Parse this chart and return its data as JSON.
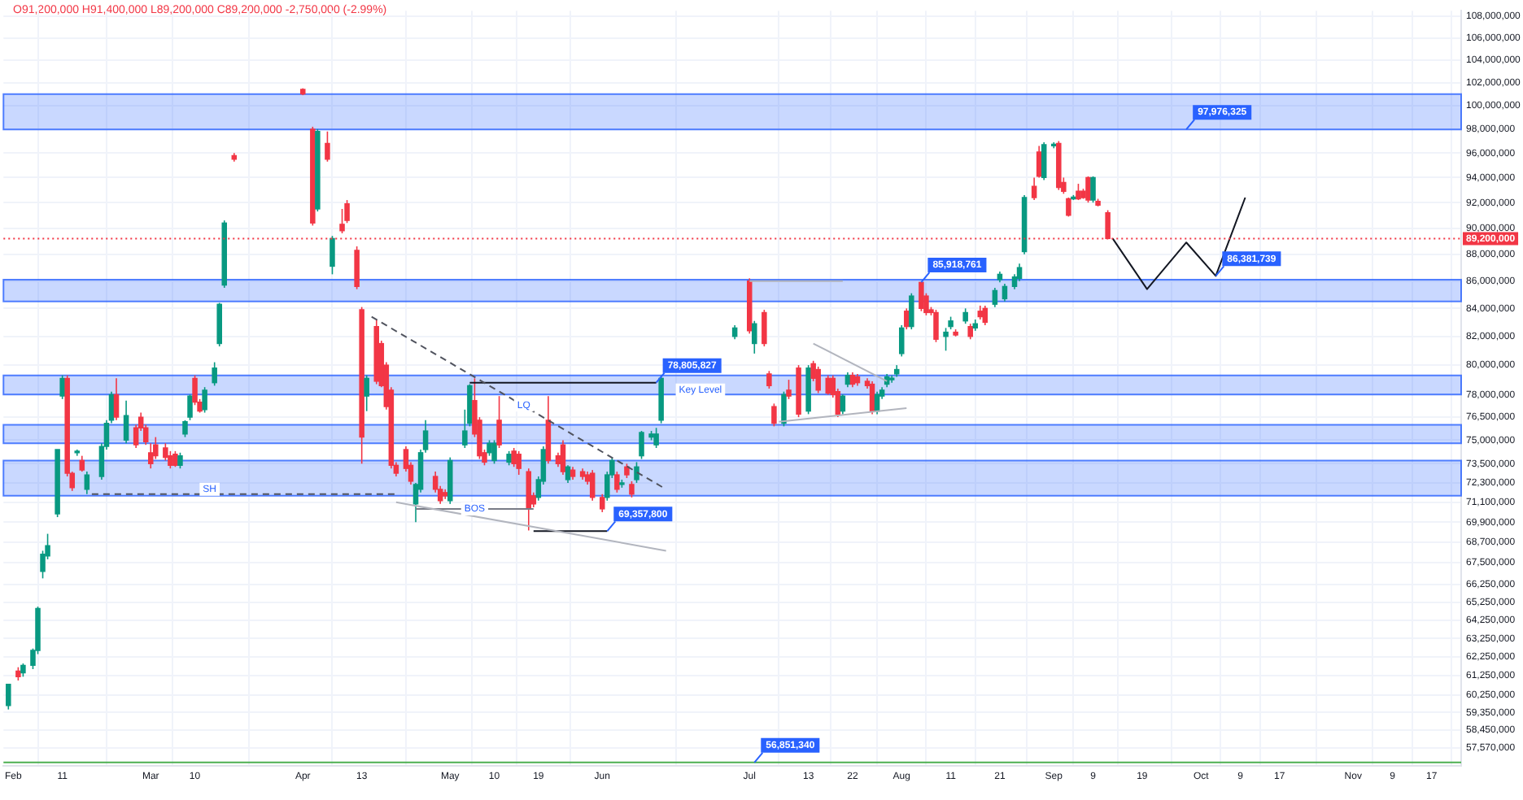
{
  "chart_data": {
    "type": "candlestick",
    "subtitle": "O91,200,000 H91,400,000 L89,200,000 C89,200,000 -2,750,000 (-2.99%)",
    "x": [
      "--01-31",
      "--02-02",
      "--02-03",
      "--02-05",
      "--02-06",
      "--02-07",
      "--02-08",
      "--02-10",
      "--02-11",
      "--02-12",
      "--02-13",
      "--02-14",
      "--02-15",
      "--02-16",
      "--02-19",
      "--02-20",
      "--02-21",
      "--02-22",
      "--02-24",
      "--02-26",
      "--02-27",
      "--02-28",
      "--03-01",
      "--03-02",
      "--03-04",
      "--03-05",
      "--03-06",
      "--03-07",
      "--03-08",
      "--03-09",
      "--03-10",
      "--03-11",
      "--03-12",
      "--03-14",
      "--03-15",
      "--03-16",
      "--03-18",
      "--04-01",
      "--04-03",
      "--04-04",
      "--04-06",
      "--04-07",
      "--04-09",
      "--04-10",
      "--04-12",
      "--04-13",
      "--04-14",
      "--04-16",
      "--04-17",
      "--04-18",
      "--04-19",
      "--04-20",
      "--04-22",
      "--04-23",
      "--04-24",
      "--04-25",
      "--04-26",
      "--04-28",
      "--04-29",
      "--04-30",
      "--05-01",
      "--05-04",
      "--05-05",
      "--05-06",
      "--05-07",
      "--05-08",
      "--05-09",
      "--05-10",
      "--05-11",
      "--05-13",
      "--05-14",
      "--05-15",
      "--05-17",
      "--05-18",
      "--05-19",
      "--05-20",
      "--05-21",
      "--05-23",
      "--05-24",
      "--05-25",
      "--05-26",
      "--05-28",
      "--05-29",
      "--05-30",
      "--06-01",
      "--06-02",
      "--06-03",
      "--06-04",
      "--06-05",
      "--06-06",
      "--06-07",
      "--06-08",
      "--06-09",
      "--06-11",
      "--06-12",
      "--06-13",
      "--06-28",
      "--07-01",
      "--07-02",
      "--07-04",
      "--07-05",
      "--07-06",
      "--07-08",
      "--07-09",
      "--07-11",
      "--07-13",
      "--07-14",
      "--07-15",
      "--07-17",
      "--07-18",
      "--07-19",
      "--07-20",
      "--07-21",
      "--07-22",
      "--07-23",
      "--07-25",
      "--07-26",
      "--07-27",
      "--07-28",
      "--07-29",
      "--07-30",
      "--07-31",
      "--08-01",
      "--08-02",
      "--08-03",
      "--08-05",
      "--08-06",
      "--08-07",
      "--08-08",
      "--08-10",
      "--08-11",
      "--08-12",
      "--08-14",
      "--08-15",
      "--08-16",
      "--08-17",
      "--08-18",
      "--08-20",
      "--08-21",
      "--08-22",
      "--08-24",
      "--08-25",
      "--08-26",
      "--08-28",
      "--08-29",
      "--08-30",
      "--09-01",
      "--09-02",
      "--09-03",
      "--09-04",
      "--09-05",
      "--09-06",
      "--09-07",
      "--09-08",
      "--09-09",
      "--09-10",
      "--09-12"
    ],
    "ohlc": [
      [
        59700000,
        60800000,
        59500000,
        60800000
      ],
      [
        61500000,
        61700000,
        61000000,
        61200000
      ],
      [
        61400000,
        61900000,
        61200000,
        61800000
      ],
      [
        61800000,
        62700000,
        61600000,
        62600000
      ],
      [
        62600000,
        65000000,
        62400000,
        64900000
      ],
      [
        67000000,
        68200000,
        66600000,
        68000000
      ],
      [
        67900000,
        69200000,
        67700000,
        68500000
      ],
      [
        70400000,
        74400000,
        70200000,
        74400000
      ],
      [
        77900000,
        79300000,
        77700000,
        79100000
      ],
      [
        79100000,
        79300000,
        72700000,
        72900000
      ],
      [
        72900000,
        73000000,
        71800000,
        72000000
      ],
      [
        74200000,
        74400000,
        74000000,
        74300000
      ],
      [
        73700000,
        74000000,
        73000000,
        73100000
      ],
      [
        71900000,
        73000000,
        71600000,
        72800000
      ],
      [
        72700000,
        74800000,
        72500000,
        74600000
      ],
      [
        74600000,
        76300000,
        74400000,
        76100000
      ],
      [
        76300000,
        78200000,
        76100000,
        78000000
      ],
      [
        78000000,
        79100000,
        76300000,
        76500000
      ],
      [
        75000000,
        77600000,
        74800000,
        76600000
      ],
      [
        75800000,
        76000000,
        74500000,
        74700000
      ],
      [
        76500000,
        76800000,
        75600000,
        75800000
      ],
      [
        75800000,
        76000000,
        74700000,
        74900000
      ],
      [
        74200000,
        74800000,
        73200000,
        73500000
      ],
      [
        74700000,
        75200000,
        73800000,
        74000000
      ],
      [
        74500000,
        74800000,
        73700000,
        73900000
      ],
      [
        74000000,
        74300000,
        73200000,
        73400000
      ],
      [
        74100000,
        74300000,
        73300000,
        73400000
      ],
      [
        73400000,
        74200000,
        73200000,
        74000000
      ],
      [
        75400000,
        76300000,
        75200000,
        76200000
      ],
      [
        76500000,
        78000000,
        76300000,
        77900000
      ],
      [
        79100000,
        79300000,
        77300000,
        77500000
      ],
      [
        77500000,
        77700000,
        76800000,
        76900000
      ],
      [
        77000000,
        78500000,
        76800000,
        78300000
      ],
      [
        78800000,
        80200000,
        78600000,
        79800000
      ],
      [
        81500000,
        84400000,
        81300000,
        84300000
      ],
      [
        85700000,
        90600000,
        85500000,
        90400000
      ],
      [
        95800000,
        96000000,
        95300000,
        95500000
      ],
      [
        101400000,
        101500000,
        100900000,
        101000000
      ],
      [
        98000000,
        98200000,
        90200000,
        90400000
      ],
      [
        91500000,
        98000000,
        91300000,
        97800000
      ],
      [
        96800000,
        97800000,
        95300000,
        95500000
      ],
      [
        87100000,
        89400000,
        86500000,
        89200000
      ],
      [
        90300000,
        91500000,
        89600000,
        89800000
      ],
      [
        91900000,
        92200000,
        90400000,
        90600000
      ],
      [
        88300000,
        88600000,
        85400000,
        85600000
      ],
      [
        83900000,
        84100000,
        73500000,
        75200000
      ],
      [
        77900000,
        79300000,
        76900000,
        79100000
      ],
      [
        82700000,
        83200000,
        78700000,
        78900000
      ],
      [
        81500000,
        81700000,
        78500000,
        78600000
      ],
      [
        80000000,
        80200000,
        77000000,
        77200000
      ],
      [
        78300000,
        78500000,
        73200000,
        73400000
      ],
      [
        73400000,
        73600000,
        72700000,
        72900000
      ],
      [
        74400000,
        74600000,
        73000000,
        73200000
      ],
      [
        73400000,
        73600000,
        72200000,
        72400000
      ],
      [
        71000000,
        72300000,
        69900000,
        72200000
      ],
      [
        71900000,
        74400000,
        71700000,
        74200000
      ],
      [
        74400000,
        76300000,
        74200000,
        75600000
      ],
      [
        72700000,
        73000000,
        71700000,
        71900000
      ],
      [
        71900000,
        72100000,
        71000000,
        71200000
      ],
      [
        71700000,
        71900000,
        71300000,
        71500000
      ],
      [
        71200000,
        73900000,
        71000000,
        73700000
      ],
      [
        74700000,
        77000000,
        74500000,
        75600000
      ],
      [
        76100000,
        78700000,
        75900000,
        78600000
      ],
      [
        77600000,
        79100000,
        75200000,
        75400000
      ],
      [
        76300000,
        76500000,
        73800000,
        74000000
      ],
      [
        74200000,
        74400000,
        73400000,
        73600000
      ],
      [
        74200000,
        75000000,
        74000000,
        74800000
      ],
      [
        73700000,
        75000000,
        73500000,
        74800000
      ],
      [
        76300000,
        77900000,
        74500000,
        74700000
      ],
      [
        73600000,
        74300000,
        73400000,
        74100000
      ],
      [
        74300000,
        74500000,
        73300000,
        73500000
      ],
      [
        74100000,
        74300000,
        72800000,
        73200000
      ],
      [
        73000000,
        73200000,
        69400000,
        70700000
      ],
      [
        71500000,
        71700000,
        70800000,
        71000000
      ],
      [
        71400000,
        72700000,
        71200000,
        72500000
      ],
      [
        72400000,
        74600000,
        72200000,
        74400000
      ],
      [
        76300000,
        77900000,
        73500000,
        73700000
      ],
      [
        74000000,
        74200000,
        73300000,
        73500000
      ],
      [
        74700000,
        75000000,
        72800000,
        73000000
      ],
      [
        72500000,
        73400000,
        72300000,
        73300000
      ],
      [
        73100000,
        73300000,
        72500000,
        72700000
      ],
      [
        73000000,
        73200000,
        72500000,
        72700000
      ],
      [
        72800000,
        73000000,
        72200000,
        72400000
      ],
      [
        72900000,
        73100000,
        71200000,
        71400000
      ],
      [
        71400000,
        71600000,
        70500000,
        70700000
      ],
      [
        71400000,
        73000000,
        71200000,
        72800000
      ],
      [
        72800000,
        73900000,
        72600000,
        73700000
      ],
      [
        72800000,
        73000000,
        71700000,
        71900000
      ],
      [
        72200000,
        72500000,
        72000000,
        72300000
      ],
      [
        73300000,
        73500000,
        72600000,
        72800000
      ],
      [
        72200000,
        72400000,
        71400000,
        71600000
      ],
      [
        72500000,
        73600000,
        72300000,
        73300000
      ],
      [
        74000000,
        75600000,
        73800000,
        75500000
      ],
      [
        75200000,
        75600000,
        75000000,
        75400000
      ],
      [
        74700000,
        75800000,
        74500000,
        75400000
      ],
      [
        76300000,
        79300000,
        76100000,
        79100000
      ],
      [
        82000000,
        82800000,
        81800000,
        82600000
      ],
      [
        86000000,
        86200000,
        82200000,
        82400000
      ],
      [
        81500000,
        83100000,
        80800000,
        82900000
      ],
      [
        83700000,
        83900000,
        81300000,
        81500000
      ],
      [
        79400000,
        79600000,
        78400000,
        78600000
      ],
      [
        77200000,
        77400000,
        75900000,
        76100000
      ],
      [
        76100000,
        78200000,
        75900000,
        78000000
      ],
      [
        78300000,
        79000000,
        77700000,
        77900000
      ],
      [
        79800000,
        80000000,
        76500000,
        76700000
      ],
      [
        76900000,
        80000000,
        76700000,
        79800000
      ],
      [
        80100000,
        80300000,
        78900000,
        79100000
      ],
      [
        79700000,
        79900000,
        78100000,
        78300000
      ],
      [
        79100000,
        79300000,
        78000000,
        78100000
      ],
      [
        79100000,
        79300000,
        77800000,
        78000000
      ],
      [
        78200000,
        78400000,
        76500000,
        76700000
      ],
      [
        76900000,
        78000000,
        76700000,
        77900000
      ],
      [
        78700000,
        79500000,
        78500000,
        79300000
      ],
      [
        79300000,
        79500000,
        78500000,
        78700000
      ],
      [
        79200000,
        79400000,
        78600000,
        78800000
      ],
      [
        78900000,
        79100000,
        78400000,
        78600000
      ],
      [
        78700000,
        78900000,
        76700000,
        76900000
      ],
      [
        76900000,
        78200000,
        76700000,
        78000000
      ],
      [
        77900000,
        78500000,
        77700000,
        78300000
      ],
      [
        78700000,
        79400000,
        78500000,
        79200000
      ],
      [
        79000000,
        79300000,
        78800000,
        79100000
      ],
      [
        79400000,
        80000000,
        79200000,
        79700000
      ],
      [
        80800000,
        82800000,
        80600000,
        82600000
      ],
      [
        83800000,
        84000000,
        82500000,
        82700000
      ],
      [
        82700000,
        85100000,
        82500000,
        84900000
      ],
      [
        85900000,
        85918761,
        83800000,
        84000000
      ],
      [
        84900000,
        85100000,
        83500000,
        83700000
      ],
      [
        83900000,
        84100000,
        83500000,
        83700000
      ],
      [
        83700000,
        83900000,
        81600000,
        81800000
      ],
      [
        82000000,
        82600000,
        81000000,
        82300000
      ],
      [
        82700000,
        83400000,
        82500000,
        83100000
      ],
      [
        82300000,
        82500000,
        82000000,
        82100000
      ],
      [
        83100000,
        84000000,
        82900000,
        83700000
      ],
      [
        82700000,
        82900000,
        81800000,
        82000000
      ],
      [
        82600000,
        83200000,
        82400000,
        82900000
      ],
      [
        83800000,
        84200000,
        83200000,
        83400000
      ],
      [
        84000000,
        84200000,
        82800000,
        83000000
      ],
      [
        84300000,
        85500000,
        84100000,
        85300000
      ],
      [
        86100000,
        86700000,
        85900000,
        86500000
      ],
      [
        84700000,
        85800000,
        84500000,
        85600000
      ],
      [
        85600000,
        86500000,
        85400000,
        86300000
      ],
      [
        86200000,
        87300000,
        86000000,
        87000000
      ],
      [
        88200000,
        92600000,
        88000000,
        92400000
      ],
      [
        93300000,
        94000000,
        92200000,
        92400000
      ],
      [
        96100000,
        96600000,
        94000000,
        94100000
      ],
      [
        94000000,
        96900000,
        93800000,
        96700000
      ],
      [
        96600000,
        96900000,
        96400000,
        96700000
      ],
      [
        96800000,
        97000000,
        93000000,
        93200000
      ],
      [
        93600000,
        94000000,
        92700000,
        92900000
      ],
      [
        92300000,
        92400000,
        90900000,
        91000000
      ],
      [
        92300000,
        92600000,
        92200000,
        92400000
      ],
      [
        92900000,
        93500000,
        92200000,
        92300000
      ],
      [
        92900000,
        93100000,
        92300000,
        92400000
      ],
      [
        94000000,
        94100000,
        92000000,
        92200000
      ],
      [
        92200000,
        94100000,
        92000000,
        94000000
      ],
      [
        92100000,
        92300000,
        91700000,
        91800000
      ],
      [
        91200000,
        91400000,
        89200000,
        89200000
      ]
    ],
    "series": [
      {
        "type": "line",
        "color": "#131722",
        "line_style": "solid",
        "x": [
          "--09-13",
          "--09-20",
          "--09-28",
          "--10-04",
          "--10-10"
        ],
        "values": [
          89200000,
          85400000,
          88900000,
          86381739,
          92400000
        ]
      },
      {
        "type": "line",
        "color": "#50535e",
        "line_style": "dashed",
        "x": [
          "--04-15",
          "--06-14"
        ],
        "values": [
          83400000,
          71900000
        ]
      },
      {
        "type": "line",
        "color": "#50535e",
        "line_style": "dashed",
        "x": [
          "--02-17",
          "--04-20"
        ],
        "values": [
          71600000,
          71600000
        ]
      },
      {
        "type": "line",
        "color": "#b2b5be",
        "line_style": "solid",
        "x": [
          "--04-20",
          "--06-14"
        ],
        "values": [
          71100000,
          68200000
        ]
      },
      {
        "type": "line",
        "color": "#787b86",
        "line_style": "solid",
        "x": [
          "--04-24",
          "--05-18"
        ],
        "values": [
          70700000,
          70700000
        ]
      },
      {
        "type": "line",
        "color": "#131722",
        "line_style": "solid",
        "x": [
          "--05-05",
          "--06-12"
        ],
        "values": [
          78805827,
          78805827
        ]
      },
      {
        "type": "line",
        "color": "#131722",
        "line_style": "solid",
        "x": [
          "--05-18",
          "--06-02"
        ],
        "values": [
          69357800,
          69357800
        ]
      },
      {
        "type": "line",
        "color": "#b2b5be",
        "line_style": "solid",
        "x": [
          "--07-14",
          "--07-29"
        ],
        "values": [
          81500000,
          78900000
        ]
      },
      {
        "type": "line",
        "color": "#b2b5be",
        "line_style": "solid",
        "x": [
          "--07-07",
          "--08-02"
        ],
        "values": [
          76200000,
          77100000
        ]
      },
      {
        "type": "line",
        "color": "#b2b5be",
        "line_style": "solid",
        "x": [
          "--07-01",
          "--07-20"
        ],
        "values": [
          86000000,
          86000000
        ]
      }
    ],
    "bands": [
      {
        "axis": "y",
        "from": 97976325,
        "to": 101000000,
        "color": "#2962ff"
      },
      {
        "axis": "y",
        "from": 84500000,
        "to": 86100000,
        "color": "#2962ff"
      },
      {
        "axis": "y",
        "from": 78000000,
        "to": 79300000,
        "color": "#2962ff"
      },
      {
        "axis": "y",
        "from": 74800000,
        "to": 76000000,
        "color": "#2962ff"
      },
      {
        "axis": "y",
        "from": 71500000,
        "to": 73700000,
        "color": "#2962ff"
      }
    ],
    "ref_lines": [
      {
        "axis": "y",
        "value": 89200000,
        "label": "89,200,000",
        "color": "#f23645",
        "line_style": "dotted"
      },
      {
        "axis": "y",
        "value": 56851340,
        "color": "#4caf50",
        "line_style": "solid"
      }
    ],
    "annotations": [
      {
        "text": "97,976,325",
        "x": "--09-28",
        "y": 97976325
      },
      {
        "text": "85,918,761",
        "x": "--08-05",
        "y": 85918761
      },
      {
        "text": "78,805,827",
        "x": "--06-12",
        "y": 78805827
      },
      {
        "text": "69,357,800",
        "x": "--06-02",
        "y": 69357800
      },
      {
        "text": "86,381,739",
        "x": "--10-04",
        "y": 86381739
      },
      {
        "text": "56,851,340",
        "x": "--07-02",
        "y": 56851340
      },
      {
        "text": "SH",
        "x": "--03-13",
        "y": 71900000
      },
      {
        "text": "BOS",
        "x": "--05-06",
        "y": 70700000
      },
      {
        "text": "LQ",
        "x": "--05-16",
        "y": 77300000
      },
      {
        "text": "Key Level",
        "x": "--06-21",
        "y": 78300000
      }
    ],
    "xlim": [
      "--01-30",
      "--11-23"
    ],
    "xticks": [
      {
        "value": "--02-01",
        "label": "Feb"
      },
      {
        "value": "--02-11",
        "label": "11"
      },
      {
        "value": "--03-01",
        "label": "Mar"
      },
      {
        "value": "--03-10",
        "label": "10"
      },
      {
        "value": "--04-01",
        "label": "Apr"
      },
      {
        "value": "--04-13",
        "label": "13"
      },
      {
        "value": "--05-01",
        "label": "May"
      },
      {
        "value": "--05-10",
        "label": "10"
      },
      {
        "value": "--05-19",
        "label": "19"
      },
      {
        "value": "--06-01",
        "label": "Jun"
      },
      {
        "value": "--07-01",
        "label": "Jul"
      },
      {
        "value": "--07-13",
        "label": "13"
      },
      {
        "value": "--07-22",
        "label": "22"
      },
      {
        "value": "--08-01",
        "label": "Aug"
      },
      {
        "value": "--08-11",
        "label": "11"
      },
      {
        "value": "--08-21",
        "label": "21"
      },
      {
        "value": "--09-01",
        "label": "Sep"
      },
      {
        "value": "--09-09",
        "label": "9"
      },
      {
        "value": "--09-19",
        "label": "19"
      },
      {
        "value": "--10-01",
        "label": "Oct"
      },
      {
        "value": "--10-09",
        "label": "9"
      },
      {
        "value": "--10-17",
        "label": "17"
      },
      {
        "value": "--11-01",
        "label": "Nov"
      },
      {
        "value": "--11-09",
        "label": "9"
      },
      {
        "value": "--11-17",
        "label": "17"
      }
    ],
    "ylim": [
      56700000,
      108500000
    ],
    "yticks": [
      {
        "value": 108000000,
        "label": "108,000,000"
      },
      {
        "value": 106000000,
        "label": "106,000,000"
      },
      {
        "value": 104000000,
        "label": "104,000,000"
      },
      {
        "value": 102000000,
        "label": "102,000,000"
      },
      {
        "value": 100000000,
        "label": "100,000,000"
      },
      {
        "value": 98000000,
        "label": "98,000,000"
      },
      {
        "value": 96000000,
        "label": "96,000,000"
      },
      {
        "value": 94000000,
        "label": "94,000,000"
      },
      {
        "value": 92000000,
        "label": "92,000,000"
      },
      {
        "value": 90000000,
        "label": "90,000,000"
      },
      {
        "value": 88000000,
        "label": "88,000,000"
      },
      {
        "value": 86000000,
        "label": "86,000,000"
      },
      {
        "value": 84000000,
        "label": "84,000,000"
      },
      {
        "value": 82000000,
        "label": "82,000,000"
      },
      {
        "value": 80000000,
        "label": "80,000,000"
      },
      {
        "value": 78000000,
        "label": "78,000,000"
      },
      {
        "value": 76500000,
        "label": "76,500,000"
      },
      {
        "value": 75000000,
        "label": "75,000,000"
      },
      {
        "value": 73500000,
        "label": "73,500,000"
      },
      {
        "value": 72300000,
        "label": "72,300,000"
      },
      {
        "value": 71100000,
        "label": "71,100,000"
      },
      {
        "value": 69900000,
        "label": "69,900,000"
      },
      {
        "value": 68700000,
        "label": "68,700,000"
      },
      {
        "value": 67500000,
        "label": "67,500,000"
      },
      {
        "value": 66250000,
        "label": "66,250,000"
      },
      {
        "value": 65250000,
        "label": "65,250,000"
      },
      {
        "value": 64250000,
        "label": "64,250,000"
      },
      {
        "value": 63250000,
        "label": "63,250,000"
      },
      {
        "value": 62250000,
        "label": "62,250,000"
      },
      {
        "value": 61250000,
        "label": "61,250,000"
      },
      {
        "value": 60250000,
        "label": "60,250,000"
      },
      {
        "value": 59350000,
        "label": "59,350,000"
      },
      {
        "value": 58450000,
        "label": "58,450,000"
      },
      {
        "value": 57570000,
        "label": "57,570,000"
      }
    ],
    "log": true,
    "grid": true
  }
}
